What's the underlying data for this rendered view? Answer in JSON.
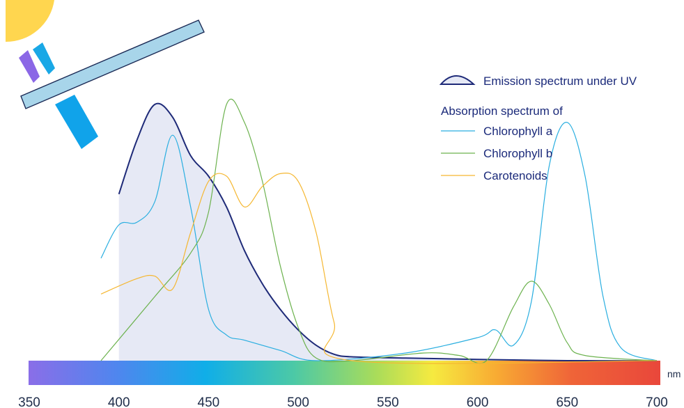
{
  "legend": {
    "emission_label": "Emission spectrum under UV",
    "absorption_heading": "Absorption spectrum of",
    "chlorophyll_a_label": "Chlorophyll a",
    "chlorophyll_b_label": "Chlorophyll b",
    "carotenoids_label": "Carotenoids"
  },
  "axis": {
    "unit": "nm",
    "ticks": [
      "350",
      "400",
      "450",
      "500",
      "550",
      "600",
      "650",
      "700"
    ]
  },
  "colors": {
    "emission_line": "#1e2a78",
    "emission_fill": "#e6e9f5",
    "chlorophyll_a": "#29aee0",
    "chlorophyll_b": "#6cb24e",
    "carotenoids": "#f5b731",
    "sun": "#ffd64f",
    "filter": "#a8d5ea",
    "uv_violet": "#8b67e6",
    "uv_blue": "#19a8e6",
    "beam_blue": "#10a3ea"
  },
  "icons": {
    "sun": "sun-icon",
    "filter": "filter-plate-icon",
    "uv_violet_ray": "violet-ray-icon",
    "uv_blue_ray": "blue-ray-icon",
    "transmitted_beam": "beam-icon"
  },
  "chart_data": {
    "type": "line",
    "xlabel": "nm",
    "xlim": [
      350,
      700
    ],
    "ylim": [
      0,
      1
    ],
    "x_ticks": [
      350,
      400,
      450,
      500,
      550,
      600,
      650,
      700
    ],
    "series": [
      {
        "name": "Emission spectrum under UV",
        "style": "area",
        "points": [
          [
            400,
            0.65
          ],
          [
            410,
            0.86
          ],
          [
            420,
            1.0
          ],
          [
            430,
            0.95
          ],
          [
            440,
            0.8
          ],
          [
            450,
            0.72
          ],
          [
            460,
            0.6
          ],
          [
            470,
            0.43
          ],
          [
            480,
            0.3
          ],
          [
            490,
            0.2
          ],
          [
            500,
            0.12
          ],
          [
            510,
            0.06
          ],
          [
            520,
            0.025
          ],
          [
            530,
            0.015
          ],
          [
            560,
            0.01
          ],
          [
            600,
            0.005
          ],
          [
            650,
            0.0
          ],
          [
            700,
            0.0
          ]
        ]
      },
      {
        "name": "Chlorophyll a",
        "points": [
          [
            390,
            0.4
          ],
          [
            400,
            0.53
          ],
          [
            410,
            0.54
          ],
          [
            420,
            0.62
          ],
          [
            430,
            0.88
          ],
          [
            440,
            0.6
          ],
          [
            450,
            0.2
          ],
          [
            460,
            0.1
          ],
          [
            470,
            0.08
          ],
          [
            490,
            0.04
          ],
          [
            510,
            0.0
          ],
          [
            560,
            0.03
          ],
          [
            600,
            0.09
          ],
          [
            610,
            0.12
          ],
          [
            620,
            0.06
          ],
          [
            630,
            0.23
          ],
          [
            640,
            0.76
          ],
          [
            650,
            0.93
          ],
          [
            660,
            0.72
          ],
          [
            670,
            0.25
          ],
          [
            680,
            0.05
          ],
          [
            700,
            0.0
          ]
        ]
      },
      {
        "name": "Chlorophyll b",
        "points": [
          [
            390,
            0.0
          ],
          [
            420,
            0.25
          ],
          [
            440,
            0.42
          ],
          [
            450,
            0.58
          ],
          [
            460,
            1.0
          ],
          [
            470,
            0.93
          ],
          [
            480,
            0.7
          ],
          [
            490,
            0.37
          ],
          [
            500,
            0.13
          ],
          [
            510,
            0.01
          ],
          [
            530,
            0.0
          ],
          [
            570,
            0.03
          ],
          [
            590,
            0.02
          ],
          [
            605,
            0.0
          ],
          [
            620,
            0.21
          ],
          [
            630,
            0.31
          ],
          [
            640,
            0.22
          ],
          [
            650,
            0.07
          ],
          [
            660,
            0.02
          ],
          [
            700,
            0.0
          ]
        ]
      },
      {
        "name": "Carotenoids",
        "points": [
          [
            390,
            0.26
          ],
          [
            410,
            0.32
          ],
          [
            420,
            0.33
          ],
          [
            430,
            0.28
          ],
          [
            440,
            0.5
          ],
          [
            450,
            0.7
          ],
          [
            460,
            0.72
          ],
          [
            470,
            0.6
          ],
          [
            480,
            0.68
          ],
          [
            490,
            0.73
          ],
          [
            500,
            0.7
          ],
          [
            510,
            0.5
          ],
          [
            520,
            0.15
          ],
          [
            530,
            0.0
          ],
          [
            700,
            0.0
          ]
        ]
      }
    ]
  }
}
